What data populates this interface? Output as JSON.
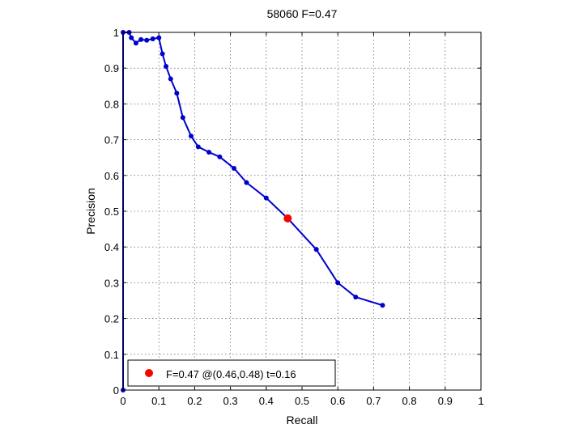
{
  "chart_data": {
    "type": "line",
    "title": "58060 F=0.47",
    "xlabel": "Recall",
    "ylabel": "Precision",
    "xlim": [
      0,
      1
    ],
    "ylim": [
      0,
      1
    ],
    "xticks": [
      "0",
      "0.1",
      "0.2",
      "0.3",
      "0.4",
      "0.5",
      "0.6",
      "0.7",
      "0.8",
      "0.9",
      "1"
    ],
    "yticks": [
      "0",
      "0.1",
      "0.2",
      "0.3",
      "0.4",
      "0.5",
      "0.6",
      "0.7",
      "0.8",
      "0.9",
      "1"
    ],
    "grid": true,
    "series": [
      {
        "color": "#0000cc",
        "points": [
          [
            0.0,
            0.0
          ],
          [
            0.0,
            1.0
          ],
          [
            0.017,
            1.0
          ],
          [
            0.023,
            0.985
          ],
          [
            0.036,
            0.97
          ],
          [
            0.05,
            0.98
          ],
          [
            0.066,
            0.978
          ],
          [
            0.083,
            0.982
          ],
          [
            0.1,
            0.985
          ],
          [
            0.11,
            0.94
          ],
          [
            0.12,
            0.905
          ],
          [
            0.133,
            0.87
          ],
          [
            0.15,
            0.83
          ],
          [
            0.167,
            0.762
          ],
          [
            0.19,
            0.71
          ],
          [
            0.21,
            0.68
          ],
          [
            0.24,
            0.665
          ],
          [
            0.27,
            0.652
          ],
          [
            0.31,
            0.62
          ],
          [
            0.345,
            0.58
          ],
          [
            0.4,
            0.537
          ],
          [
            0.46,
            0.48
          ],
          [
            0.54,
            0.393
          ],
          [
            0.6,
            0.3
          ],
          [
            0.65,
            0.26
          ],
          [
            0.725,
            0.237
          ]
        ]
      }
    ],
    "best_point": {
      "x": 0.46,
      "y": 0.48,
      "color": "#ff0000"
    },
    "legend": {
      "placement": "bottom-left",
      "text": "F=0.47 @(0.46,0.48) t=0.16"
    }
  }
}
